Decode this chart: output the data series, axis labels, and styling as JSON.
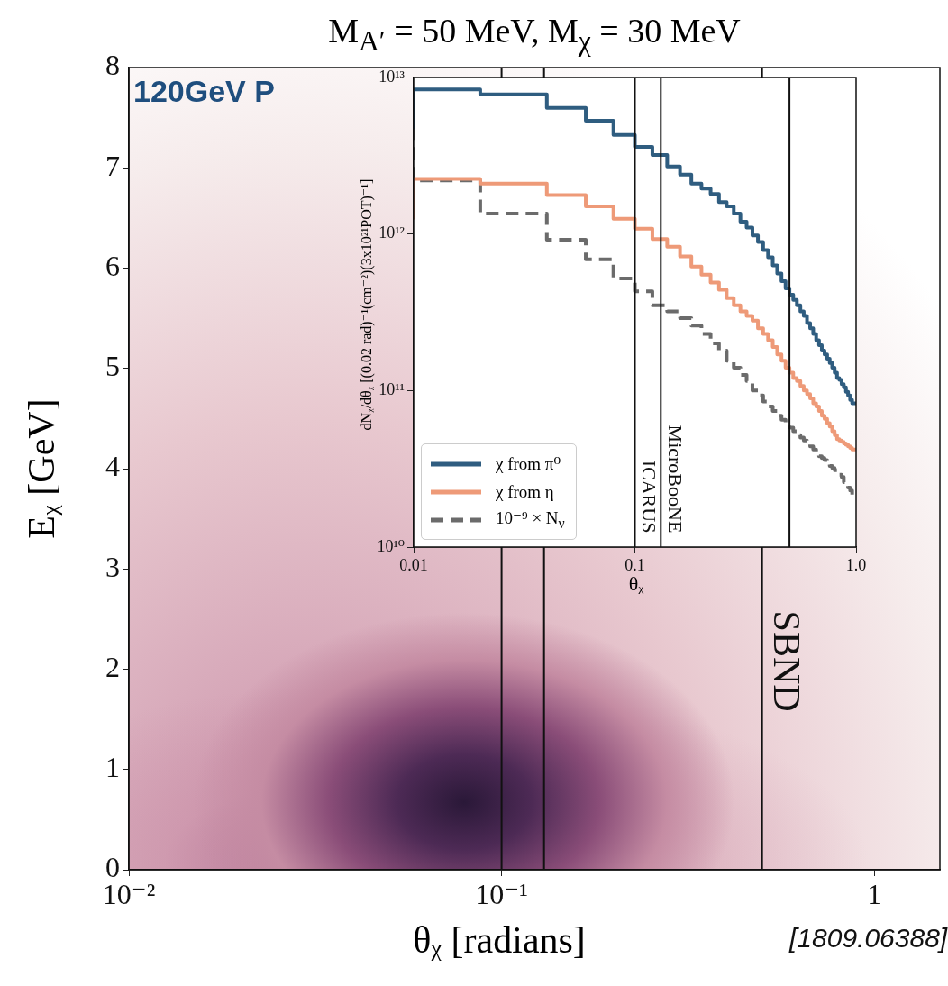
{
  "chart_data": [
    {
      "type": "scatter",
      "title": "M$_{A′}$ = 50 MeV,  M$_{χ}$ = 30 MeV",
      "xlabel": "θᵪ [radians]",
      "ylabel": "Eᵪ [GeV]",
      "log": "x",
      "xlim": [
        0.01,
        1.5
      ],
      "xticks": [
        {
          "value": 0.01,
          "label": "10⁻²"
        },
        {
          "value": 0.1,
          "label": "10⁻¹"
        },
        1
      ],
      "ylim": [
        0,
        8
      ],
      "yticks": [
        0,
        1,
        2,
        3,
        4,
        5,
        6,
        7,
        8
      ],
      "ref_lines": [
        {
          "axis": "x",
          "value": 0.1
        },
        {
          "axis": "x",
          "value": 0.13
        },
        {
          "axis": "x",
          "value": 0.5,
          "label": "SBND"
        }
      ],
      "annotations": [
        "120GeV P",
        "[1809.06388]"
      ]
    },
    {
      "type": "step",
      "xlabel": "θᵪ",
      "ylabel": "dNᵪ/dθᵪ [(0.02 rad)⁻¹(cm⁻²)(3x10²¹POT)⁻¹]",
      "log": "xy",
      "legend": "bottom left",
      "xlim": [
        0.01,
        1
      ],
      "xticks": [
        {
          "value": 0.01,
          "label": "0.01"
        },
        {
          "value": 0.1,
          "label": "0.1"
        },
        {
          "value": 1,
          "label": "1.0"
        }
      ],
      "ylim": [
        10000000000.0,
        10000000000000.0
      ],
      "yticks": [
        {
          "value": 10000000000.0,
          "label": "10¹⁰"
        },
        {
          "value": 100000000000.0,
          "label": "10¹¹"
        },
        {
          "value": 1000000000000.0,
          "label": "10¹²"
        },
        {
          "value": 10000000000000.0,
          "label": "10¹³"
        }
      ],
      "x": [
        0.01,
        0.02,
        0.04,
        0.06,
        0.08,
        0.1,
        0.12,
        0.14,
        0.16,
        0.18,
        0.2,
        0.22,
        0.24,
        0.26,
        0.28,
        0.3,
        0.32,
        0.34,
        0.36,
        0.38,
        0.4,
        0.42,
        0.44,
        0.46,
        0.48,
        0.5,
        0.52,
        0.54,
        0.56,
        0.58,
        0.6,
        0.62,
        0.64,
        0.66,
        0.68,
        0.7,
        0.72,
        0.74,
        0.76,
        0.78,
        0.8,
        0.82,
        0.84,
        0.86,
        0.88,
        0.9,
        0.92,
        0.94,
        0.96,
        0.98
      ],
      "series": [
        {
          "name": "χ from π⁰",
          "color": "#2f5d80",
          "values": [
            4700000000000.0,
            8400000000000.0,
            7800000000000.0,
            6400000000000.0,
            5300000000000.0,
            4300000000000.0,
            3600000000000.0,
            3200000000000.0,
            2700000000000.0,
            2400000000000.0,
            2100000000000.0,
            1950000000000.0,
            1800000000000.0,
            1600000000000.0,
            1500000000000.0,
            1350000000000.0,
            1200000000000.0,
            1100000000000.0,
            980000000000.0,
            890000000000.0,
            790000000000.0,
            710000000000.0,
            630000000000.0,
            560000000000.0,
            500000000000.0,
            450000000000.0,
            410000000000.0,
            380000000000.0,
            350000000000.0,
            320000000000.0,
            300000000000.0,
            270000000000.0,
            250000000000.0,
            230000000000.0,
            210000000000.0,
            195000000000.0,
            180000000000.0,
            170000000000.0,
            160000000000.0,
            150000000000.0,
            140000000000.0,
            130000000000.0,
            120000000000.0,
            117000000000.0,
            110000000000.0,
            105000000000.0,
            98000000000.0,
            93000000000.0,
            87000000000.0,
            83000000000.0
          ]
        },
        {
          "name": "χ from η",
          "color": "#ee9a78",
          "values": [
            1240000000000.0,
            2250000000000.0,
            2100000000000.0,
            1770000000000.0,
            1500000000000.0,
            1250000000000.0,
            1080000000000.0,
            930000000000.0,
            830000000000.0,
            720000000000.0,
            620000000000.0,
            550000000000.0,
            490000000000.0,
            440000000000.0,
            390000000000.0,
            350000000000.0,
            320000000000.0,
            300000000000.0,
            280000000000.0,
            250000000000.0,
            230000000000.0,
            210000000000.0,
            190000000000.0,
            170000000000.0,
            155000000000.0,
            140000000000.0,
            130000000000.0,
            120000000000.0,
            115000000000.0,
            107000000000.0,
            100000000000.0,
            95000000000.0,
            89000000000.0,
            83000000000.0,
            79000000000.0,
            74000000000.0,
            69000000000.0,
            66000000000.0,
            62000000000.0,
            59000000000.0,
            55000000000.0,
            52000000000.0,
            49000000000.0,
            48000000000.0,
            47000000000.0,
            46000000000.0,
            45000000000.0,
            44000000000.0,
            43000000000.0,
            42000000000.0
          ]
        },
        {
          "name": "10⁻⁹ × N$_{ν}$",
          "color": "#6b6b6b",
          "line_style": "dashed",
          "values": [
            4800000000000.0,
            2200000000000.0,
            1350000000000.0,
            920000000000.0,
            690000000000.0,
            520000000000.0,
            430000000000.0,
            350000000000.0,
            320000000000.0,
            290000000000.0,
            260000000000.0,
            230000000000.0,
            200000000000.0,
            180000000000.0,
            155000000000.0,
            140000000000.0,
            126000000000.0,
            115000000000.0,
            100000000000.0,
            93000000000.0,
            85000000000.0,
            79000000000.0,
            74000000000.0,
            69000000000.0,
            65000000000.0,
            60000000000.0,
            58000000000.0,
            55000000000.0,
            52000000000.0,
            50000000000.0,
            48000000000.0,
            46000000000.0,
            44000000000.0,
            42000000000.0,
            40000000000.0,
            38000000000.0,
            37000000000.0,
            36000000000.0,
            35000000000.0,
            33000000000.0,
            32000000000.0,
            31000000000.0,
            30000000000.0,
            29000000000.0,
            28000000000.0,
            26000000000.0,
            25000000000.0,
            24000000000.0,
            23000000000.0,
            21000000000.0
          ]
        }
      ],
      "ref_lines": [
        {
          "axis": "x",
          "value": 0.1,
          "label": "ICARUS"
        },
        {
          "axis": "x",
          "value": 0.131,
          "label": "MicroBooNE"
        },
        {
          "axis": "x",
          "value": 0.5
        }
      ]
    }
  ]
}
